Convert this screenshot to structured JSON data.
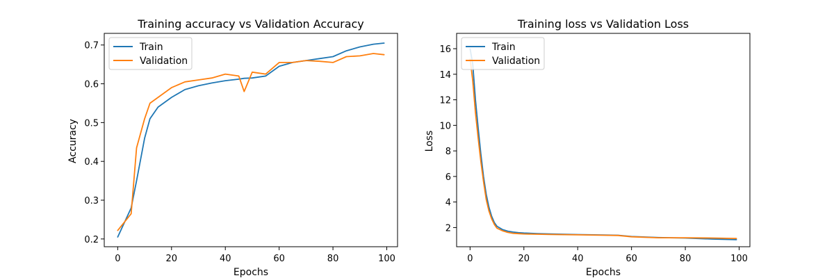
{
  "chart_data": [
    {
      "type": "line",
      "title": "Training accuracy vs Validation Accuracy",
      "xlabel": "Epochs",
      "ylabel": "Accuracy",
      "xlim": [
        -5,
        104
      ],
      "ylim": [
        0.18,
        0.73
      ],
      "xticks": [
        0,
        20,
        40,
        60,
        80,
        100
      ],
      "yticks": [
        0.2,
        0.3,
        0.4,
        0.5,
        0.6,
        0.7
      ],
      "ytick_labels": [
        "0.2",
        "0.3",
        "0.4",
        "0.5",
        "0.6",
        "0.7"
      ],
      "legend_position": "top-left",
      "grid": false,
      "x_points": [
        0,
        5,
        7,
        10,
        12,
        15,
        20,
        25,
        30,
        35,
        40,
        45,
        47,
        50,
        55,
        60,
        65,
        70,
        75,
        80,
        85,
        90,
        95,
        99
      ],
      "series": [
        {
          "name": "Train",
          "color": "#1f77b4",
          "values": [
            0.205,
            0.28,
            0.35,
            0.46,
            0.51,
            0.54,
            0.565,
            0.585,
            0.595,
            0.602,
            0.608,
            0.612,
            0.614,
            0.615,
            0.62,
            0.645,
            0.655,
            0.66,
            0.665,
            0.67,
            0.685,
            0.695,
            0.702,
            0.705
          ]
        },
        {
          "name": "Validation",
          "color": "#ff7f0e",
          "values": [
            0.222,
            0.265,
            0.435,
            0.51,
            0.55,
            0.565,
            0.59,
            0.605,
            0.61,
            0.615,
            0.625,
            0.62,
            0.58,
            0.63,
            0.625,
            0.655,
            0.655,
            0.66,
            0.658,
            0.655,
            0.67,
            0.672,
            0.678,
            0.675
          ]
        }
      ]
    },
    {
      "type": "line",
      "title": "Training loss vs Validation Loss",
      "xlabel": "Epochs",
      "ylabel": "Loss",
      "xlim": [
        -5,
        104
      ],
      "ylim": [
        0.5,
        17.2
      ],
      "xticks": [
        0,
        20,
        40,
        60,
        80,
        100
      ],
      "yticks": [
        2,
        4,
        6,
        8,
        10,
        12,
        14,
        16
      ],
      "ytick_labels": [
        "2",
        "4",
        "6",
        "8",
        "10",
        "12",
        "14",
        "16"
      ],
      "legend_position": "top-left",
      "grid": false,
      "x_points": [
        0,
        1,
        2,
        3,
        4,
        5,
        6,
        7,
        8,
        9,
        10,
        12,
        14,
        16,
        18,
        20,
        25,
        30,
        40,
        50,
        55,
        60,
        70,
        80,
        90,
        99
      ],
      "series": [
        {
          "name": "Train",
          "color": "#1f77b4",
          "values": [
            16.0,
            14.8,
            12.0,
            9.8,
            7.8,
            6.0,
            4.6,
            3.6,
            2.9,
            2.4,
            2.1,
            1.85,
            1.72,
            1.65,
            1.6,
            1.57,
            1.53,
            1.5,
            1.45,
            1.42,
            1.4,
            1.3,
            1.22,
            1.18,
            1.1,
            1.05
          ]
        },
        {
          "name": "Validation",
          "color": "#ff7f0e",
          "values": [
            15.2,
            13.5,
            11.0,
            9.0,
            7.2,
            5.6,
            4.2,
            3.3,
            2.7,
            2.25,
            1.95,
            1.75,
            1.62,
            1.55,
            1.52,
            1.5,
            1.48,
            1.46,
            1.43,
            1.4,
            1.38,
            1.28,
            1.2,
            1.2,
            1.18,
            1.15
          ]
        }
      ]
    }
  ]
}
